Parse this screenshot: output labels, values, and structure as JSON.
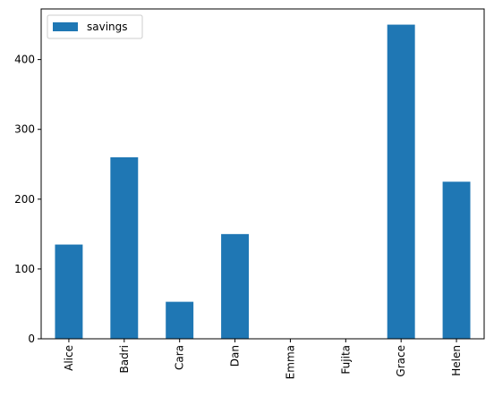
{
  "chart_data": {
    "type": "bar",
    "categories": [
      "Alice",
      "Badri",
      "Cara",
      "Dan",
      "Emma",
      "Fujita",
      "Grace",
      "Helen"
    ],
    "series": [
      {
        "name": "savings",
        "values": [
          135,
          260,
          53,
          150,
          0,
          0,
          450,
          225
        ],
        "color": "#1f77b4"
      }
    ],
    "ylim": [
      0,
      472.5
    ],
    "yticks": [
      0,
      100,
      200,
      300,
      400
    ],
    "xtick_rotation": 90,
    "legend_position": "upper-left",
    "grid": false
  }
}
